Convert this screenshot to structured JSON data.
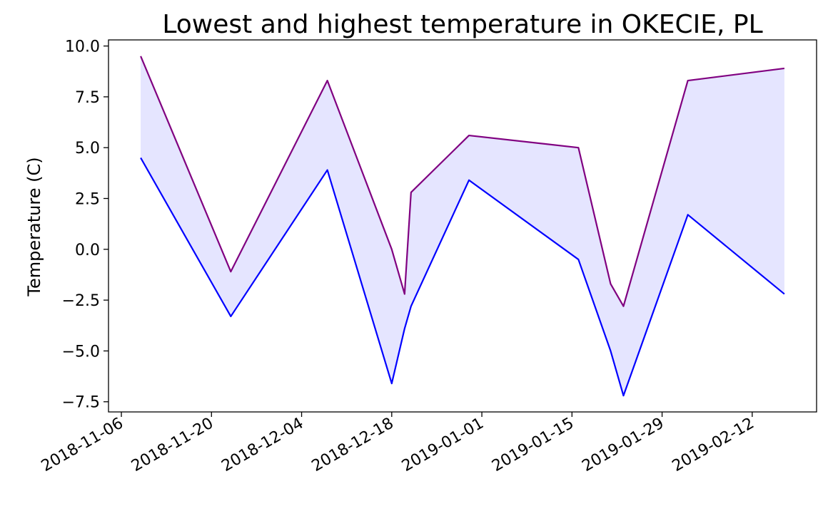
{
  "chart_data": {
    "type": "line",
    "title": "Lowest and highest temperature in OKECIE, PL",
    "xlabel": "",
    "ylabel": "Temperature (C)",
    "ylim": [
      -8.0,
      10.3
    ],
    "xlim": [
      "2018-11-04",
      "2019-02-22"
    ],
    "y_ticks": [
      "10.0",
      "7.5",
      "5.0",
      "2.5",
      "0.0",
      "−2.5",
      "−5.0",
      "−7.5"
    ],
    "y_tick_values": [
      10.0,
      7.5,
      5.0,
      2.5,
      0.0,
      -2.5,
      -5.0,
      -7.5
    ],
    "x_ticks": [
      "2018-11-06",
      "2018-11-20",
      "2018-12-04",
      "2018-12-18",
      "2019-01-01",
      "2019-01-15",
      "2019-01-29",
      "2019-02-12"
    ],
    "grid": false,
    "fill_between": {
      "color": "#e5e5ff"
    },
    "series": [
      {
        "role": "highest",
        "color": "#800080",
        "points": [
          {
            "x": "2018-11-09",
            "y": 9.5
          },
          {
            "x": "2018-11-23",
            "y": -1.1
          },
          {
            "x": "2018-12-08",
            "y": 8.3
          },
          {
            "x": "2018-12-18",
            "y": 0.0
          },
          {
            "x": "2018-12-20",
            "y": -2.2
          },
          {
            "x": "2018-12-21",
            "y": 2.8
          },
          {
            "x": "2018-12-30",
            "y": 5.6
          },
          {
            "x": "2019-01-16",
            "y": 5.0
          },
          {
            "x": "2019-01-21",
            "y": -1.7
          },
          {
            "x": "2019-01-23",
            "y": -2.8
          },
          {
            "x": "2019-02-02",
            "y": 8.3
          },
          {
            "x": "2019-02-17",
            "y": 8.9
          }
        ]
      },
      {
        "role": "lowest",
        "color": "#0000ff",
        "points": [
          {
            "x": "2018-11-09",
            "y": 4.5
          },
          {
            "x": "2018-11-23",
            "y": -3.3
          },
          {
            "x": "2018-12-08",
            "y": 3.9
          },
          {
            "x": "2018-12-18",
            "y": -6.6
          },
          {
            "x": "2018-12-20",
            "y": -3.9
          },
          {
            "x": "2018-12-21",
            "y": -2.8
          },
          {
            "x": "2018-12-30",
            "y": 3.4
          },
          {
            "x": "2019-01-16",
            "y": -0.5
          },
          {
            "x": "2019-01-21",
            "y": -5.0
          },
          {
            "x": "2019-01-23",
            "y": -7.2
          },
          {
            "x": "2019-02-02",
            "y": 1.7
          },
          {
            "x": "2019-02-17",
            "y": -2.2
          }
        ]
      }
    ]
  }
}
